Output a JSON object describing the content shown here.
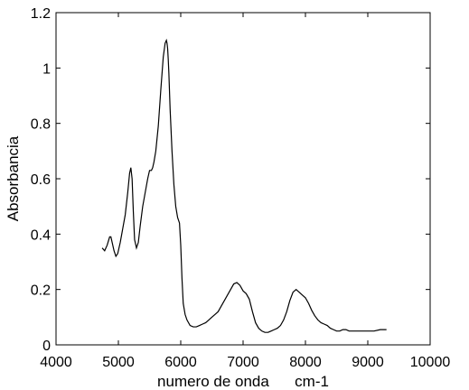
{
  "chart_data": {
    "type": "line",
    "title": "",
    "xlabel": "numero de onda      cm-1",
    "ylabel": "Absorbancia",
    "xlim": [
      4000,
      10000
    ],
    "ylim": [
      0,
      1.2
    ],
    "x_ticks": [
      4000,
      5000,
      6000,
      7000,
      8000,
      9000,
      10000
    ],
    "y_ticks": [
      0,
      0.2,
      0.4,
      0.6,
      0.8,
      1,
      1.2
    ],
    "x_tick_labels": [
      "4000",
      "5000",
      "6000",
      "7000",
      "8000",
      "9000",
      "10000"
    ],
    "y_tick_labels": [
      "0",
      "0.2",
      "0.4",
      "0.6",
      "0.8",
      "1",
      "1.2"
    ],
    "grid": false,
    "legend": "none",
    "line_color": "#000000",
    "series": [
      {
        "x": [
          4740,
          4780,
          4820,
          4860,
          4880,
          4900,
          4930,
          4960,
          4990,
          5030,
          5070,
          5110,
          5150,
          5180,
          5200,
          5220,
          5240,
          5260,
          5290,
          5320,
          5350,
          5390,
          5430,
          5470,
          5500,
          5530,
          5550,
          5570,
          5600,
          5640,
          5680,
          5720,
          5750,
          5770,
          5780,
          5790,
          5800,
          5810,
          5830,
          5860,
          5890,
          5920,
          5950,
          5980,
          6000,
          6020,
          6040,
          6070,
          6100,
          6150,
          6200,
          6250,
          6300,
          6350,
          6400,
          6450,
          6500,
          6550,
          6600,
          6650,
          6700,
          6750,
          6800,
          6850,
          6900,
          6950,
          7000,
          7050,
          7100,
          7150,
          7200,
          7250,
          7300,
          7350,
          7400,
          7450,
          7500,
          7550,
          7600,
          7650,
          7700,
          7750,
          7800,
          7850,
          7900,
          7950,
          8000,
          8050,
          8100,
          8150,
          8200,
          8250,
          8300,
          8350,
          8400,
          8450,
          8500,
          8550,
          8600,
          8650,
          8700,
          8750,
          8800,
          8850,
          8900,
          8950,
          9000,
          9100,
          9200,
          9300
        ],
        "y": [
          0.35,
          0.34,
          0.36,
          0.39,
          0.39,
          0.37,
          0.34,
          0.32,
          0.33,
          0.37,
          0.42,
          0.47,
          0.55,
          0.62,
          0.64,
          0.6,
          0.48,
          0.38,
          0.35,
          0.37,
          0.43,
          0.5,
          0.55,
          0.6,
          0.63,
          0.63,
          0.64,
          0.66,
          0.7,
          0.79,
          0.92,
          1.04,
          1.09,
          1.1,
          1.09,
          1.07,
          1.03,
          0.98,
          0.85,
          0.7,
          0.58,
          0.5,
          0.46,
          0.44,
          0.36,
          0.24,
          0.15,
          0.11,
          0.09,
          0.07,
          0.065,
          0.065,
          0.07,
          0.075,
          0.08,
          0.09,
          0.1,
          0.11,
          0.12,
          0.14,
          0.16,
          0.18,
          0.2,
          0.22,
          0.225,
          0.215,
          0.195,
          0.185,
          0.165,
          0.12,
          0.08,
          0.06,
          0.05,
          0.045,
          0.045,
          0.05,
          0.055,
          0.06,
          0.07,
          0.09,
          0.12,
          0.16,
          0.19,
          0.2,
          0.19,
          0.18,
          0.17,
          0.15,
          0.125,
          0.105,
          0.09,
          0.08,
          0.075,
          0.07,
          0.06,
          0.055,
          0.05,
          0.05,
          0.055,
          0.055,
          0.05,
          0.05,
          0.05,
          0.05,
          0.05,
          0.05,
          0.05,
          0.05,
          0.055,
          0.055
        ]
      }
    ]
  }
}
